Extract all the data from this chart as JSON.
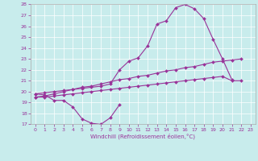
{
  "xlabel": "Windchill (Refroidissement éolien,°C)",
  "ylim": [
    17,
    28
  ],
  "xlim": [
    -0.5,
    23.5
  ],
  "yticks": [
    17,
    18,
    19,
    20,
    21,
    22,
    23,
    24,
    25,
    26,
    27,
    28
  ],
  "xticks": [
    0,
    1,
    2,
    3,
    4,
    5,
    6,
    7,
    8,
    9,
    10,
    11,
    12,
    13,
    14,
    15,
    16,
    17,
    18,
    19,
    20,
    21,
    22,
    23
  ],
  "c1_x": [
    0,
    1,
    2,
    3,
    4,
    5,
    6,
    7,
    8,
    9
  ],
  "c1_y": [
    19.8,
    19.7,
    19.2,
    19.2,
    18.6,
    17.5,
    17.1,
    17.0,
    17.6,
    18.8
  ],
  "c2_x": [
    0,
    1,
    2,
    3,
    4,
    5,
    6,
    7,
    8,
    9,
    10,
    11,
    12,
    13,
    14,
    15,
    16,
    17,
    18,
    19,
    20,
    21
  ],
  "c2_y": [
    19.8,
    19.9,
    20.0,
    20.1,
    20.2,
    20.3,
    20.4,
    20.5,
    20.7,
    22.0,
    22.8,
    23.1,
    24.2,
    26.2,
    26.5,
    27.7,
    28.0,
    27.6,
    26.7,
    24.8,
    23.0,
    21.1
  ],
  "c3_x": [
    0,
    1,
    2,
    3,
    4,
    5,
    6,
    7,
    8,
    9,
    10,
    11,
    12,
    13,
    14,
    15,
    16,
    17,
    18,
    19,
    20,
    21,
    22
  ],
  "c3_y": [
    19.5,
    19.6,
    19.8,
    20.0,
    20.2,
    20.4,
    20.5,
    20.7,
    20.9,
    21.1,
    21.2,
    21.4,
    21.5,
    21.7,
    21.9,
    22.0,
    22.2,
    22.3,
    22.5,
    22.7,
    22.8,
    22.9,
    23.0
  ],
  "c4_x": [
    0,
    1,
    2,
    3,
    4,
    5,
    6,
    7,
    8,
    9,
    10,
    11,
    12,
    13,
    14,
    15,
    16,
    17,
    18,
    19,
    20,
    21,
    22
  ],
  "c4_y": [
    19.5,
    19.5,
    19.6,
    19.7,
    19.8,
    19.9,
    20.0,
    20.1,
    20.2,
    20.3,
    20.4,
    20.5,
    20.6,
    20.7,
    20.8,
    20.9,
    21.0,
    21.1,
    21.2,
    21.3,
    21.4,
    21.0,
    21.0
  ],
  "line_color": "#993399",
  "bg_color": "#c8ecec",
  "grid_color": "#ffffff",
  "marker": "D",
  "marker_size": 2,
  "linewidth": 0.8
}
